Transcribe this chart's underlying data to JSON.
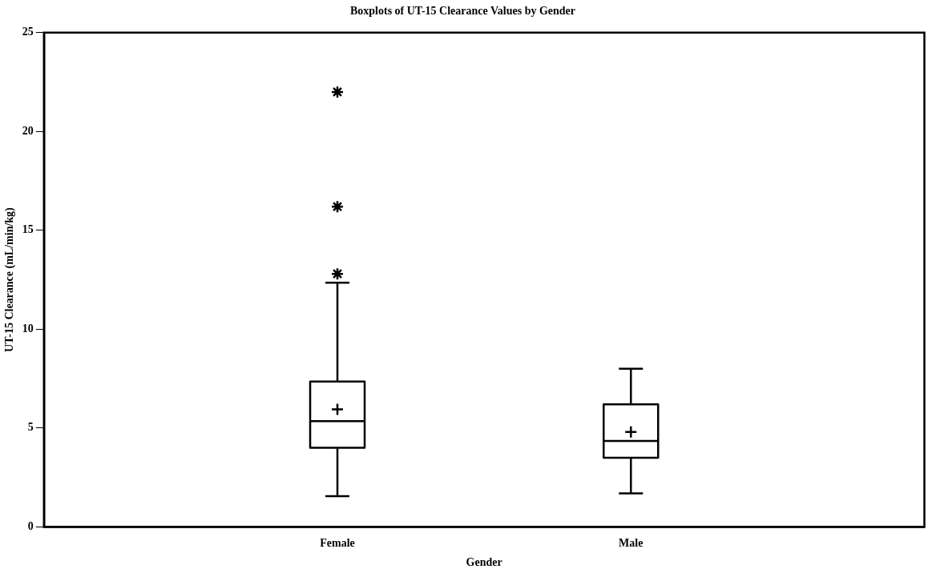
{
  "chart_data": {
    "type": "box",
    "title": "Boxplots of UT-15 Clearance Values by Gender",
    "xlabel": "Gender",
    "ylabel": "UT-15 Clearance (mL/min/kg)",
    "categories": [
      "Female",
      "Male"
    ],
    "boxes": [
      {
        "low": 1.55,
        "q1": 4.0,
        "median": 5.35,
        "q3": 7.35,
        "high": 12.35,
        "mean": 5.95,
        "outliers": [
          12.8,
          16.2,
          22.0
        ]
      },
      {
        "low": 1.7,
        "q1": 3.5,
        "median": 4.35,
        "q3": 6.2,
        "high": 8.0,
        "mean": 4.8
      }
    ],
    "color": "#000000",
    "ylim": [
      0,
      25
    ],
    "yticks": [
      0,
      5,
      10,
      15,
      20,
      25
    ],
    "grid": false,
    "legend": false
  }
}
